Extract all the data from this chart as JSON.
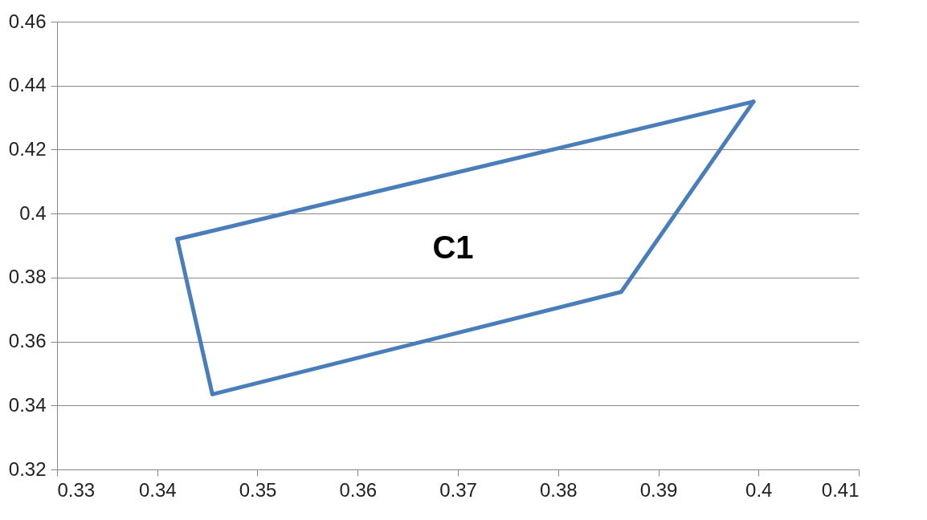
{
  "chart_data": {
    "type": "line",
    "series": [
      {
        "color": "#4a7ebb",
        "x": [
          0.342,
          0.3995
        ],
        "values": [
          0.392,
          0.435
        ]
      },
      {
        "color": "#4a7ebb",
        "x": [
          0.342,
          0.3455,
          0.3863,
          0.3995
        ],
        "values": [
          0.392,
          0.3435,
          0.3755,
          0.435
        ]
      }
    ],
    "xlim": [
      0.33,
      0.41
    ],
    "xticks": [
      0.33,
      0.34,
      0.35,
      0.36,
      0.37,
      0.38,
      0.39,
      0.4,
      0.41
    ],
    "ylim": [
      0.32,
      0.46
    ],
    "yticks": [
      0.32,
      0.34,
      0.36,
      0.38,
      0.4,
      0.42,
      0.44,
      0.46
    ],
    "grid": "y",
    "marker": "none",
    "line_style": "solid",
    "annotations": [
      "C1"
    ]
  }
}
